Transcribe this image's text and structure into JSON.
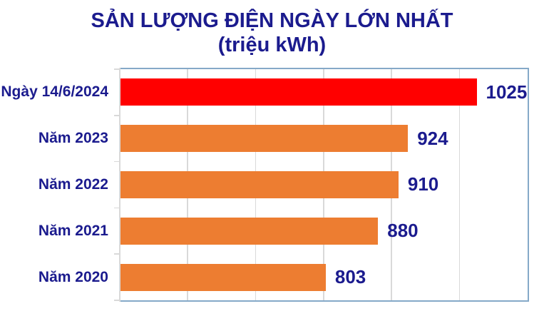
{
  "chart_data": {
    "type": "bar",
    "orientation": "horizontal",
    "title": "SẢN LƯỢNG ĐIỆN NGÀY LỚN NHẤT",
    "subtitle": "(triệu kWh)",
    "categories": [
      "Ngày 14/6/2024",
      "Năm 2023",
      "Năm 2022",
      "Năm 2021",
      "Năm 2020"
    ],
    "values": [
      1025,
      924,
      910,
      880,
      803
    ],
    "value_labels": [
      "1025",
      "924",
      "910",
      "880",
      "803"
    ],
    "bar_colors": [
      "#FF0000",
      "#ED7D31",
      "#ED7D31",
      "#ED7D31",
      "#ED7D31"
    ],
    "xlim": [
      500,
      1100
    ],
    "major_unit": 100,
    "axis_tick_labels_visible": false,
    "grid": true,
    "legend": false,
    "colors": {
      "title_text": "#1B1B8E",
      "category_text": "#1B1B8E",
      "value_text": "#1B1B8E",
      "highlight_bar": "#FF0000",
      "default_bar": "#ED7D31",
      "gridline": "#D9D9D9",
      "axis_line": "#D9D9D9",
      "plot_border": "#85A9C8",
      "background": "#FFFFFF"
    }
  }
}
